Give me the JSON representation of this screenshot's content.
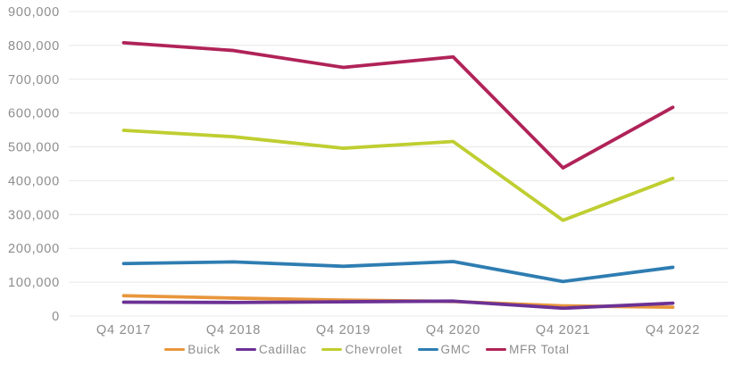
{
  "chart_data": {
    "type": "line",
    "title": "",
    "xlabel": "",
    "ylabel": "",
    "categories": [
      "Q4 2017",
      "Q4 2018",
      "Q4 2019",
      "Q4 2020",
      "Q4 2021",
      "Q4 2022"
    ],
    "series": [
      {
        "name": "Buick",
        "color": "#E8963C",
        "values": [
          60000,
          53000,
          47000,
          43000,
          30000,
          26000
        ]
      },
      {
        "name": "Cadillac",
        "color": "#6C3195",
        "values": [
          41000,
          40000,
          42000,
          44000,
          23000,
          38000
        ]
      },
      {
        "name": "Chevrolet",
        "color": "#BFCE31",
        "values": [
          549000,
          530000,
          496000,
          516000,
          283000,
          407000
        ]
      },
      {
        "name": "GMC",
        "color": "#2E7DB2",
        "values": [
          155000,
          160000,
          147000,
          161000,
          102000,
          144000
        ]
      },
      {
        "name": "MFR Total",
        "color": "#B02358",
        "values": [
          808000,
          785000,
          735000,
          766000,
          438000,
          617000
        ]
      }
    ],
    "ylim": [
      0,
      900000
    ],
    "y_tick_step": 100000,
    "y_tick_labels": [
      "0",
      "100,000",
      "200,000",
      "300,000",
      "400,000",
      "500,000",
      "600,000",
      "700,000",
      "800,000",
      "900,000"
    ],
    "grid": true,
    "legend_position": "bottom",
    "colors": {
      "background": "#ffffff",
      "gridline": "#e8e8e8",
      "axis_text": "#8d8d8d",
      "legend_text": "#8d8d8d"
    }
  }
}
